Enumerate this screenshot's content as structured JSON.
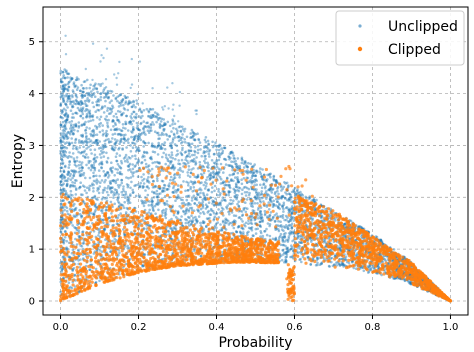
{
  "chart_data": {
    "type": "scatter",
    "title": "",
    "xlabel": "Probability",
    "ylabel": "Entropy",
    "xlim": [
      -0.045,
      1.045
    ],
    "ylim": [
      -0.27,
      5.67
    ],
    "xticks": [
      0.0,
      0.2,
      0.4,
      0.6,
      0.8,
      1.0
    ],
    "xtick_labels": [
      "0.0",
      "0.2",
      "0.4",
      "0.6",
      "0.8",
      "1.0"
    ],
    "yticks": [
      0,
      1,
      2,
      3,
      4,
      5
    ],
    "ytick_labels": [
      "0",
      "1",
      "2",
      "3",
      "4",
      "5"
    ],
    "grid": true,
    "legend_position": "top-right",
    "series": [
      {
        "name": "Unclipped",
        "color": "#1f77b4",
        "description": "dense cloud of points; lower envelope rises from 0 at p=0 to ~1 then falls to 0 at p=1; upper envelope falls roughly linearly from ~4.5 at p=0 to 0 at p=1",
        "envelope_upper": [
          [
            0.0,
            4.5
          ],
          [
            0.2,
            3.85
          ],
          [
            0.4,
            3.05
          ],
          [
            0.6,
            2.2
          ],
          [
            0.8,
            1.3
          ],
          [
            0.9,
            0.75
          ],
          [
            1.0,
            0.0
          ]
        ],
        "envelope_lower": [
          [
            0.0,
            0.0
          ],
          [
            0.1,
            0.33
          ],
          [
            0.2,
            0.55
          ],
          [
            0.3,
            0.68
          ],
          [
            0.45,
            0.75
          ],
          [
            0.6,
            0.73
          ],
          [
            0.75,
            0.62
          ],
          [
            0.88,
            0.38
          ],
          [
            1.0,
            0.0
          ]
        ]
      },
      {
        "name": "Clipped",
        "color": "#ff7f0e",
        "description": "points concentrated in lower band (0 to ~2) across probability range, plus a band along the upper-right edge from ~0.6 to 1.0",
        "band_low_upper": [
          [
            0.0,
            2.1
          ],
          [
            0.2,
            1.75
          ],
          [
            0.4,
            1.35
          ],
          [
            0.55,
            1.15
          ]
        ],
        "band_high_upper": [
          [
            0.6,
            2.05
          ],
          [
            0.7,
            1.75
          ],
          [
            0.8,
            1.25
          ],
          [
            0.9,
            0.75
          ],
          [
            1.0,
            0.0
          ]
        ]
      }
    ]
  }
}
